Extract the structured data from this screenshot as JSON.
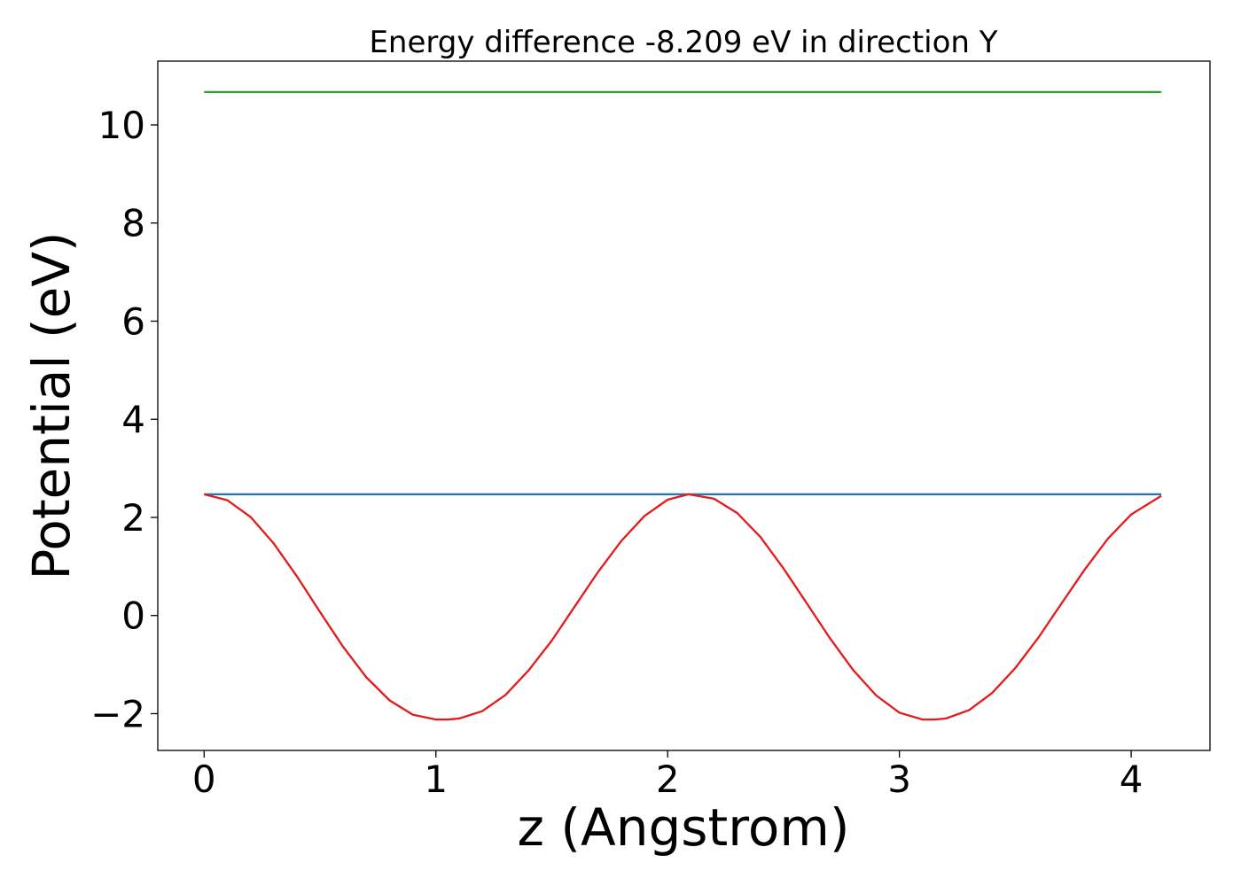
{
  "chart_data": {
    "type": "line",
    "title": "Energy difference -8.209 eV in direction Y",
    "xlabel": "z (Angstrom)",
    "ylabel": "Potential (eV)",
    "xlim": [
      -0.2,
      4.34
    ],
    "ylim": [
      -2.75,
      11.3
    ],
    "xticks": [
      0,
      1,
      2,
      3,
      4
    ],
    "xtick_labels": [
      "0",
      "1",
      "2",
      "3",
      "4"
    ],
    "yticks": [
      -2,
      0,
      2,
      4,
      6,
      8,
      10
    ],
    "ytick_labels": [
      "−2",
      "0",
      "2",
      "4",
      "6",
      "8",
      "10"
    ],
    "grid": false,
    "legend": "none",
    "series": [
      {
        "color": "#2ca02c",
        "x": [
          0,
          4.13
        ],
        "y": [
          10.67,
          10.67
        ]
      },
      {
        "color": "#1f77b4",
        "x": [
          0,
          4.13
        ],
        "y": [
          2.47,
          2.47
        ]
      },
      {
        "color": "#e41a1c",
        "x": [
          0,
          0.1,
          0.2,
          0.3,
          0.4,
          0.5,
          0.6,
          0.7,
          0.8,
          0.9,
          1.0,
          1.05,
          1.1,
          1.2,
          1.3,
          1.4,
          1.5,
          1.6,
          1.7,
          1.8,
          1.9,
          2.0,
          2.09,
          2.2,
          2.3,
          2.4,
          2.5,
          2.6,
          2.7,
          2.8,
          2.9,
          3.0,
          3.1,
          3.15,
          3.2,
          3.3,
          3.4,
          3.5,
          3.6,
          3.7,
          3.8,
          3.9,
          4.0,
          4.13
        ],
        "y": [
          2.47,
          2.35,
          2.01,
          1.47,
          0.8,
          0.07,
          -0.64,
          -1.26,
          -1.73,
          -2.02,
          -2.12,
          -2.12,
          -2.1,
          -1.95,
          -1.62,
          -1.12,
          -0.51,
          0.19,
          0.89,
          1.52,
          2.03,
          2.36,
          2.47,
          2.38,
          2.09,
          1.6,
          0.96,
          0.25,
          -0.46,
          -1.11,
          -1.63,
          -1.98,
          -2.12,
          -2.12,
          -2.1,
          -1.93,
          -1.58,
          -1.07,
          -0.45,
          0.25,
          0.94,
          1.57,
          2.06,
          2.44
        ]
      }
    ]
  }
}
